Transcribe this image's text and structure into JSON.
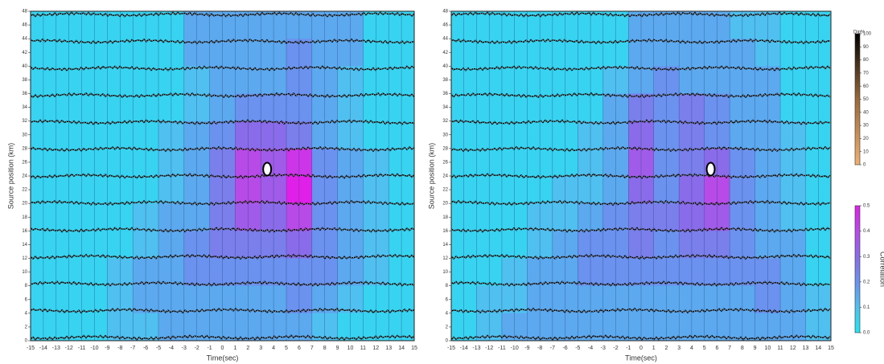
{
  "chart_data": [
    {
      "type": "heatmap",
      "xlabel": "Time(sec)",
      "ylabel": "Source position (km)",
      "xlim": [
        -15,
        15
      ],
      "ylim": [
        0,
        48
      ],
      "xticks": [
        -15,
        -14,
        -13,
        -12,
        -11,
        -10,
        -9,
        -8,
        -7,
        -6,
        -5,
        -4,
        -3,
        -2,
        -1,
        0,
        1,
        2,
        3,
        4,
        5,
        6,
        7,
        8,
        9,
        10,
        11,
        12,
        13,
        14,
        15
      ],
      "yticks": [
        0,
        2,
        4,
        6,
        8,
        10,
        12,
        14,
        16,
        18,
        20,
        22,
        24,
        26,
        28,
        30,
        32,
        34,
        36,
        38,
        40,
        42,
        44,
        46,
        48
      ],
      "x": [
        -14,
        -12,
        -10,
        -8,
        -6,
        -4,
        -2,
        0,
        2,
        4,
        6,
        8,
        10,
        12,
        14
      ],
      "y": [
        46,
        42,
        38,
        34,
        30,
        26,
        22,
        18,
        14,
        10,
        6,
        2
      ],
      "z": [
        [
          0.05,
          0.05,
          0.05,
          0.05,
          0.05,
          0.05,
          0.15,
          0.15,
          0.15,
          0.15,
          0.15,
          0.15,
          0.15,
          0.05,
          0.05
        ],
        [
          0.05,
          0.05,
          0.05,
          0.05,
          0.05,
          0.05,
          0.15,
          0.15,
          0.15,
          0.15,
          0.2,
          0.15,
          0.15,
          0.05,
          0.05
        ],
        [
          0.05,
          0.05,
          0.05,
          0.05,
          0.05,
          0.05,
          0.1,
          0.15,
          0.15,
          0.15,
          0.2,
          0.15,
          0.1,
          0.05,
          0.05
        ],
        [
          0.05,
          0.05,
          0.05,
          0.05,
          0.05,
          0.05,
          0.1,
          0.15,
          0.2,
          0.2,
          0.2,
          0.15,
          0.1,
          0.05,
          0.05
        ],
        [
          0.05,
          0.05,
          0.05,
          0.05,
          0.05,
          0.1,
          0.15,
          0.2,
          0.3,
          0.3,
          0.25,
          0.15,
          0.1,
          0.05,
          0.05
        ],
        [
          0.05,
          0.05,
          0.05,
          0.05,
          0.05,
          0.1,
          0.15,
          0.25,
          0.4,
          0.35,
          0.45,
          0.2,
          0.15,
          0.1,
          0.05
        ],
        [
          0.05,
          0.05,
          0.05,
          0.05,
          0.05,
          0.1,
          0.15,
          0.25,
          0.4,
          0.35,
          0.5,
          0.2,
          0.15,
          0.1,
          0.05
        ],
        [
          0.05,
          0.05,
          0.05,
          0.05,
          0.1,
          0.15,
          0.15,
          0.25,
          0.35,
          0.3,
          0.4,
          0.2,
          0.15,
          0.1,
          0.05
        ],
        [
          0.05,
          0.05,
          0.05,
          0.05,
          0.1,
          0.15,
          0.2,
          0.25,
          0.25,
          0.25,
          0.3,
          0.2,
          0.15,
          0.1,
          0.05
        ],
        [
          0.05,
          0.05,
          0.05,
          0.1,
          0.15,
          0.15,
          0.2,
          0.2,
          0.2,
          0.2,
          0.2,
          0.2,
          0.15,
          0.1,
          0.05
        ],
        [
          0.05,
          0.05,
          0.05,
          0.1,
          0.15,
          0.15,
          0.15,
          0.15,
          0.15,
          0.15,
          0.2,
          0.15,
          0.1,
          0.05,
          0.05
        ],
        [
          0.05,
          0.05,
          0.05,
          0.1,
          0.1,
          0.15,
          0.15,
          0.15,
          0.15,
          0.15,
          0.15,
          0.1,
          0.05,
          0.05,
          0.05
        ]
      ],
      "source": {
        "x": 3.5,
        "y": 25
      }
    },
    {
      "type": "heatmap",
      "xlabel": "Time(sec)",
      "ylabel": "Source position (km)",
      "xlim": [
        -15,
        15
      ],
      "ylim": [
        0,
        48
      ],
      "xticks": [
        -15,
        -14,
        -13,
        -12,
        -11,
        -10,
        -9,
        -8,
        -7,
        -6,
        -5,
        -4,
        -3,
        -2,
        -1,
        0,
        1,
        2,
        3,
        4,
        5,
        6,
        7,
        8,
        9,
        10,
        11,
        12,
        13,
        14,
        15
      ],
      "yticks": [
        0,
        2,
        4,
        6,
        8,
        10,
        12,
        14,
        16,
        18,
        20,
        22,
        24,
        26,
        28,
        30,
        32,
        34,
        36,
        38,
        40,
        42,
        44,
        46,
        48
      ],
      "x": [
        -14,
        -12,
        -10,
        -8,
        -6,
        -4,
        -2,
        0,
        2,
        4,
        6,
        8,
        10,
        12,
        14
      ],
      "y": [
        46,
        42,
        38,
        34,
        30,
        26,
        22,
        18,
        14,
        10,
        6,
        2
      ],
      "z": [
        [
          0.05,
          0.05,
          0.05,
          0.05,
          0.05,
          0.05,
          0.05,
          0.15,
          0.15,
          0.15,
          0.15,
          0.1,
          0.1,
          0.05,
          0.05
        ],
        [
          0.05,
          0.05,
          0.05,
          0.05,
          0.05,
          0.05,
          0.05,
          0.15,
          0.15,
          0.15,
          0.15,
          0.15,
          0.1,
          0.05,
          0.05
        ],
        [
          0.05,
          0.05,
          0.05,
          0.05,
          0.05,
          0.05,
          0.1,
          0.15,
          0.2,
          0.15,
          0.15,
          0.15,
          0.15,
          0.05,
          0.05
        ],
        [
          0.05,
          0.05,
          0.05,
          0.05,
          0.05,
          0.05,
          0.15,
          0.25,
          0.2,
          0.25,
          0.2,
          0.15,
          0.15,
          0.05,
          0.05
        ],
        [
          0.05,
          0.05,
          0.05,
          0.05,
          0.05,
          0.1,
          0.15,
          0.3,
          0.2,
          0.25,
          0.2,
          0.15,
          0.15,
          0.1,
          0.05
        ],
        [
          0.05,
          0.05,
          0.05,
          0.05,
          0.05,
          0.1,
          0.15,
          0.35,
          0.2,
          0.25,
          0.3,
          0.2,
          0.15,
          0.1,
          0.05
        ],
        [
          0.05,
          0.05,
          0.05,
          0.05,
          0.1,
          0.1,
          0.15,
          0.3,
          0.2,
          0.3,
          0.4,
          0.2,
          0.15,
          0.1,
          0.05
        ],
        [
          0.05,
          0.05,
          0.05,
          0.1,
          0.1,
          0.15,
          0.2,
          0.25,
          0.25,
          0.3,
          0.35,
          0.2,
          0.15,
          0.1,
          0.05
        ],
        [
          0.05,
          0.05,
          0.05,
          0.1,
          0.15,
          0.2,
          0.2,
          0.25,
          0.2,
          0.25,
          0.25,
          0.2,
          0.15,
          0.15,
          0.05
        ],
        [
          0.05,
          0.05,
          0.1,
          0.15,
          0.15,
          0.2,
          0.2,
          0.2,
          0.2,
          0.2,
          0.2,
          0.2,
          0.2,
          0.15,
          0.05
        ],
        [
          0.05,
          0.1,
          0.1,
          0.15,
          0.15,
          0.15,
          0.15,
          0.15,
          0.15,
          0.15,
          0.15,
          0.15,
          0.2,
          0.15,
          0.1
        ],
        [
          0.05,
          0.1,
          0.15,
          0.15,
          0.15,
          0.15,
          0.15,
          0.15,
          0.15,
          0.15,
          0.15,
          0.15,
          0.15,
          0.15,
          0.1
        ]
      ],
      "source": {
        "x": 5.5,
        "y": 25
      },
      "colorbars": [
        {
          "label": "Dip%",
          "lim": [
            0,
            100
          ],
          "ticks": [
            0,
            10,
            20,
            30,
            40,
            50,
            60,
            70,
            80,
            90,
            100
          ],
          "colors": [
            "#f0b070",
            "#9a6a3a",
            "#000000"
          ]
        },
        {
          "label": "Correlation",
          "lim": [
            0,
            0.5
          ],
          "ticks": [
            {
              "value": 0,
              "label": "0.0"
            },
            0.1,
            0.2,
            0.3,
            0.4,
            0.5
          ],
          "colors": [
            "#20e6f0",
            "#4fc0f0",
            "#6a92ee",
            "#8a6cea",
            "#b84ae8",
            "#e020e8"
          ]
        }
      ]
    }
  ]
}
